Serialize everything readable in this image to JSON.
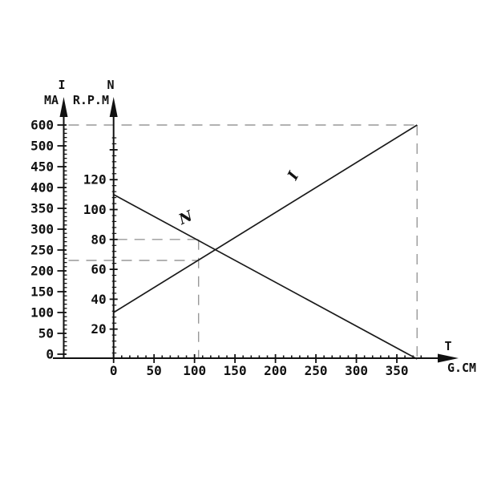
{
  "figure": {
    "description": "Motor performance curves: current I (MA) and speed N (R.P.M) versus torque T (G.CM)",
    "colors": {
      "curve": "#1a1a1a",
      "axis": "#111111",
      "guide": "#999999",
      "text": "#111111",
      "background": "#ffffff"
    }
  },
  "chart_data": {
    "type": "line",
    "title": "",
    "grid": false,
    "legend": "none",
    "x_axis": {
      "name": "T",
      "units": "G.CM",
      "tick_labels": [
        0,
        50,
        100,
        150,
        200,
        250,
        300,
        350
      ],
      "minor_step": 10,
      "minor_max": 385,
      "range": [
        0,
        390
      ]
    },
    "left_axis": {
      "name": "I",
      "units": "MA",
      "tick_labels": [
        0,
        50,
        100,
        150,
        200,
        250,
        300,
        350,
        400,
        450,
        500,
        600
      ],
      "minor_per_major": 4,
      "note": "labels jump from 500 to 600 with a single step spacing"
    },
    "inner_axis": {
      "name": "N",
      "units": "R.P.M",
      "tick_labels": [
        20,
        40,
        60,
        80,
        100,
        120
      ],
      "unlabeled_major_ticks": [
        140
      ],
      "minor_step": 4,
      "minor_max": 148
    },
    "series": [
      {
        "name": "N",
        "axis": "inner",
        "points": [
          [
            0,
            110
          ],
          [
            375,
            0
          ]
        ]
      },
      {
        "name": "I",
        "axis": "left",
        "points": [
          [
            0,
            100
          ],
          [
            375,
            600
          ]
        ]
      }
    ],
    "guides": [
      {
        "name": "stall-point",
        "t": 375,
        "left_value": 600
      },
      {
        "name": "operating-point",
        "t": 105,
        "inner_value": 80,
        "left_value": 225
      }
    ]
  }
}
